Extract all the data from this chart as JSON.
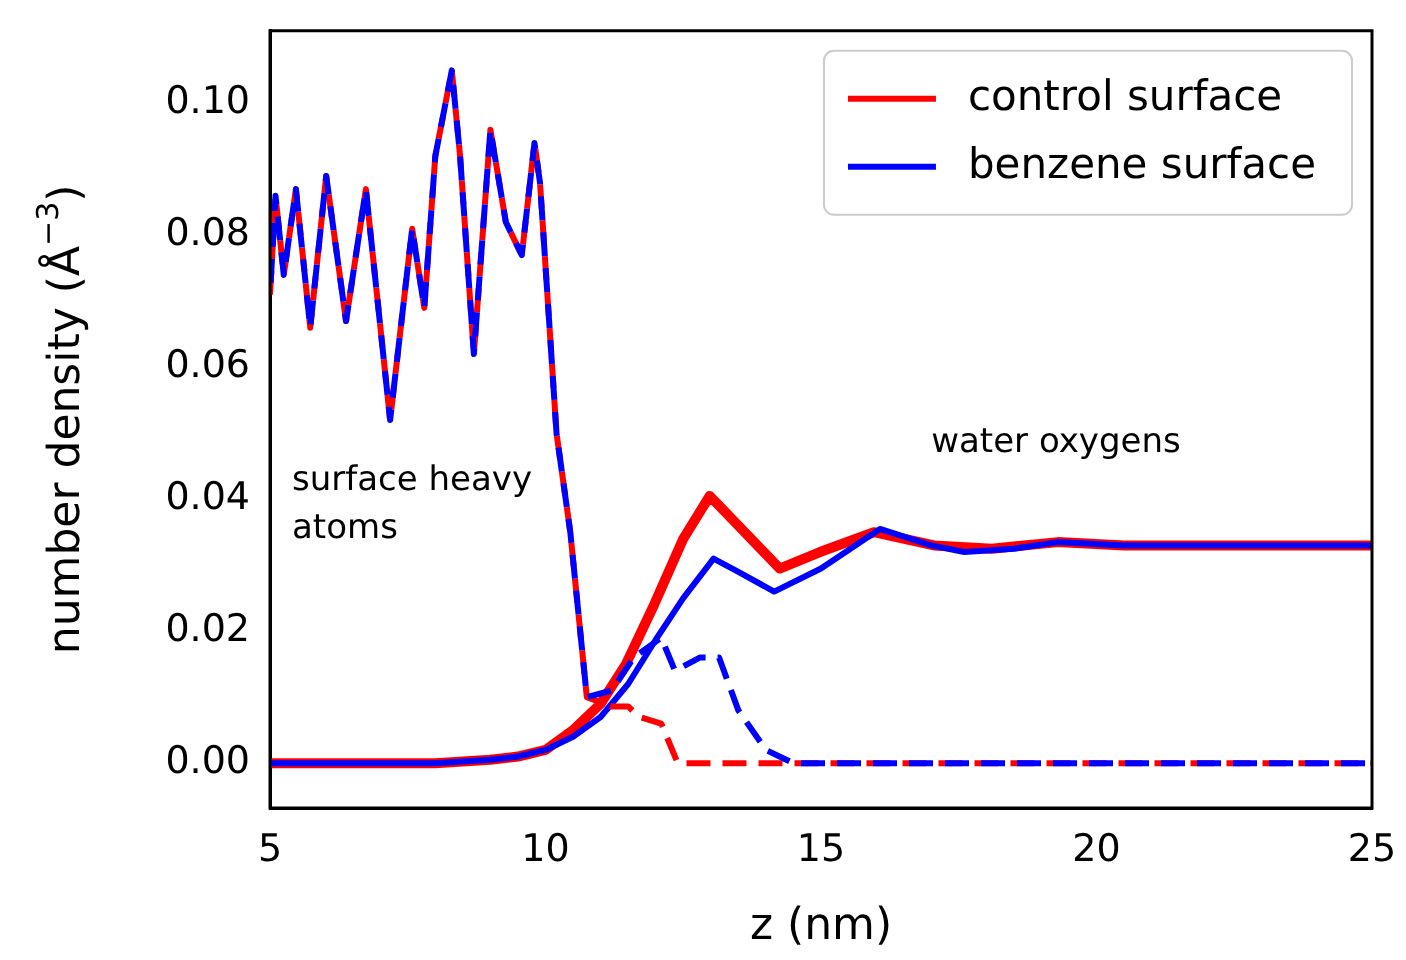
{
  "chart_data": {
    "type": "line",
    "xlabel": "z (nm)",
    "ylabel": "number density (Å$^{−3}$)",
    "xlim": [
      5,
      25
    ],
    "ylim": [
      -0.0068,
      0.111
    ],
    "xticks": [
      5,
      10,
      15,
      20,
      25
    ],
    "yticks": [
      {
        "value": 0,
        "label": "0.00"
      },
      {
        "value": 0.02,
        "label": "0.02"
      },
      {
        "value": 0.04,
        "label": "0.04"
      },
      {
        "value": 0.06,
        "label": "0.06"
      },
      {
        "value": 0.08,
        "label": "0.08"
      },
      {
        "value": 0.1,
        "label": "0.10"
      }
    ],
    "grid": false,
    "legend": "top right",
    "marker": "none",
    "annotations": [
      "surface heavy atoms",
      "water oxygens"
    ],
    "series": [
      {
        "name": "control surface",
        "color": "#ff0000",
        "line_style": "solid",
        "x": [
          5,
          8,
          9,
          9.5,
          10,
          10.5,
          11,
          11.46,
          11.97,
          12.5,
          12.98,
          13.5,
          14.25,
          14.98,
          15.96,
          17.05,
          18.1,
          19.3,
          20.5,
          22,
          23.5,
          25
        ],
        "values": [
          0,
          0,
          0.0005,
          0.001,
          0.002,
          0.005,
          0.009,
          0.015,
          0.024,
          0.034,
          0.0405,
          0.036,
          0.0295,
          0.032,
          0.035,
          0.033,
          0.0325,
          0.0335,
          0.033,
          0.033,
          0.033,
          0.033
        ]
      },
      {
        "name": "benzene surface",
        "color": "#0000ff",
        "line_style": "solid",
        "x": [
          5,
          8,
          9,
          9.5,
          10,
          10.5,
          11,
          11.5,
          12,
          12.5,
          13.05,
          13.5,
          14.15,
          15,
          16.07,
          17,
          17.6,
          18.5,
          19.3,
          20.5,
          22,
          23.5,
          25
        ],
        "values": [
          0,
          0,
          0.0005,
          0.001,
          0.002,
          0.004,
          0.007,
          0.012,
          0.0187,
          0.025,
          0.031,
          0.029,
          0.026,
          0.0295,
          0.0355,
          0.033,
          0.032,
          0.0325,
          0.0335,
          0.033,
          0.033,
          0.033,
          0.033
        ]
      },
      {
        "color": "#ff0000",
        "line_style": "dashed",
        "x": [
          5,
          5.1,
          5.25,
          5.47,
          5.73,
          6.02,
          6.38,
          6.74,
          7.18,
          7.58,
          7.8,
          8.0,
          8.3,
          8.45,
          8.7,
          9.0,
          9.28,
          9.57,
          9.8,
          9.9,
          10.2,
          10.45,
          10.75,
          11.2,
          11.5,
          11.7,
          12.1,
          12.4,
          13,
          15,
          20,
          25
        ],
        "values": [
          0.071,
          0.086,
          0.074,
          0.087,
          0.066,
          0.089,
          0.067,
          0.087,
          0.052,
          0.081,
          0.069,
          0.092,
          0.105,
          0.092,
          0.062,
          0.096,
          0.082,
          0.077,
          0.094,
          0.088,
          0.05,
          0.035,
          0.01,
          0.0086,
          0.0086,
          0.007,
          0.006,
          0,
          0,
          0,
          0,
          0
        ]
      },
      {
        "color": "#0000ff",
        "line_style": "dashed",
        "x": [
          5,
          5.1,
          5.25,
          5.47,
          5.73,
          6.02,
          6.38,
          6.74,
          7.18,
          7.58,
          7.8,
          8.0,
          8.3,
          8.45,
          8.7,
          9.0,
          9.28,
          9.57,
          9.8,
          9.9,
          10.2,
          10.45,
          10.75,
          11.2,
          11.6,
          12.1,
          12.35,
          12.8,
          13.15,
          13.5,
          14.0,
          14.5,
          20,
          25
        ],
        "values": [
          0.071,
          0.086,
          0.074,
          0.087,
          0.066,
          0.089,
          0.067,
          0.087,
          0.052,
          0.081,
          0.069,
          0.092,
          0.105,
          0.092,
          0.062,
          0.096,
          0.082,
          0.077,
          0.094,
          0.088,
          0.05,
          0.035,
          0.01,
          0.011,
          0.016,
          0.019,
          0.014,
          0.016,
          0.016,
          0.008,
          0.002,
          0,
          0,
          0
        ]
      }
    ]
  }
}
